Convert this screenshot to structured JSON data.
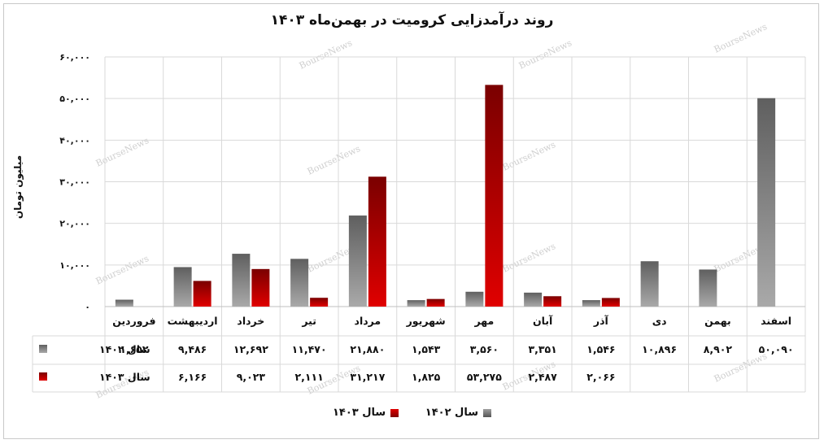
{
  "chart_data": {
    "type": "bar",
    "title": "روند درآمدزایی کرومیت در بهمن‌ماه ۱۴۰۳",
    "ylabel": "میلیون تومان",
    "ylim": [
      0,
      60000
    ],
    "yticks": [
      "۰",
      "۱۰,۰۰۰",
      "۲۰,۰۰۰",
      "۳۰,۰۰۰",
      "۴۰,۰۰۰",
      "۵۰,۰۰۰",
      "۶۰,۰۰۰"
    ],
    "grid": true,
    "legend_position": "bottom",
    "categories": [
      "فروردین",
      "اردیبهشت",
      "خرداد",
      "تیر",
      "مرداد",
      "شهریور",
      "مهر",
      "آبان",
      "آذر",
      "دی",
      "بهمن",
      "اسفند"
    ],
    "series": [
      {
        "name": "سال ۱۴۰۲",
        "color": "#7f7f7f",
        "values": [
          1652,
          9486,
          12692,
          11470,
          21880,
          1543,
          3560,
          3351,
          1546,
          10896,
          8902,
          50090
        ],
        "labels": [
          "۱,۶۵۲",
          "۹,۴۸۶",
          "۱۲,۶۹۲",
          "۱۱,۴۷۰",
          "۲۱,۸۸۰",
          "۱,۵۴۳",
          "۳,۵۶۰",
          "۳,۳۵۱",
          "۱,۵۴۶",
          "۱۰,۸۹۶",
          "۸,۹۰۲",
          "۵۰,۰۹۰"
        ]
      },
      {
        "name": "سال ۱۴۰۳",
        "color": "#c00000",
        "values": [
          0,
          6166,
          9023,
          2111,
          31217,
          1825,
          53275,
          2487,
          2066,
          null,
          null,
          null
        ],
        "labels": [
          "۰",
          "۶,۱۶۶",
          "۹,۰۲۳",
          "۲,۱۱۱",
          "۳۱,۲۱۷",
          "۱,۸۲۵",
          "۵۳,۲۷۵",
          "۲,۴۸۷",
          "۲,۰۶۶",
          "",
          "",
          ""
        ]
      }
    ],
    "watermark": "BourseNews"
  }
}
